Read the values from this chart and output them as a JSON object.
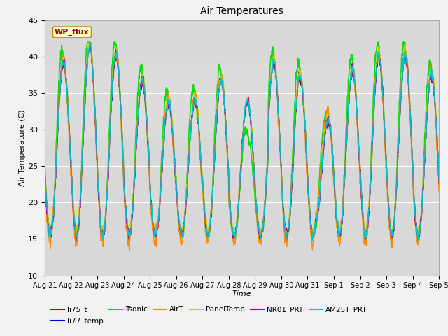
{
  "title": "Air Temperatures",
  "xlabel": "Time",
  "ylabel": "Air Temperature (C)",
  "ylim": [
    10,
    45
  ],
  "yticks": [
    10,
    15,
    20,
    25,
    30,
    35,
    40,
    45
  ],
  "plot_bg_color": "#d8d8d8",
  "grid_color": "#ffffff",
  "fig_bg_color": "#f2f2f2",
  "annotation_text": "WP_flux",
  "annotation_bg": "#ffffcc",
  "annotation_edge": "#cc8800",
  "annotation_text_color": "#aa0000",
  "legend_entries": [
    "li75_t",
    "li77_temp",
    "Tsonic",
    "AirT",
    "PanelTemp",
    "NR01_PRT",
    "AM25T_PRT"
  ],
  "line_colors": [
    "#cc0000",
    "#0000cc",
    "#00dd00",
    "#ff8800",
    "#cccc00",
    "#aa00aa",
    "#00cccc"
  ],
  "line_widths": [
    1.0,
    1.0,
    1.2,
    1.0,
    1.0,
    1.0,
    1.0
  ]
}
